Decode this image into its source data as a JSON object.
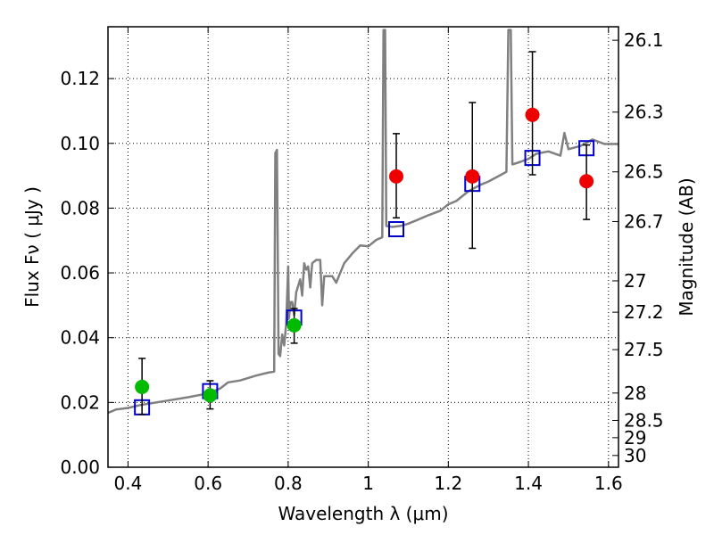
{
  "chart_data": {
    "type": "scatter",
    "xlabel": "Wavelength  λ (μm)",
    "ylabel": "Flux  Fν  ( μJy )",
    "y2label": "Magnitude (AB)",
    "xlim": [
      0.35,
      1.625
    ],
    "ylim": [
      0.0,
      0.136
    ],
    "grid": true,
    "x_ticks": [
      0.4,
      0.6,
      0.8,
      1.0,
      1.2,
      1.4,
      1.6
    ],
    "x_tick_labels": [
      "0.4",
      "0.6",
      "0.8",
      "1",
      "1.2",
      "1.4",
      "1.6"
    ],
    "y_ticks": [
      0.0,
      0.02,
      0.04,
      0.06,
      0.08,
      0.1,
      0.12
    ],
    "y_tick_labels": [
      "0.00",
      "0.02",
      "0.04",
      "0.06",
      "0.08",
      "0.10",
      "0.12"
    ],
    "y2_ticks": [
      "26.1",
      "26.3",
      "26.5",
      "26.7",
      "27",
      "27.2",
      "27.5",
      "28",
      "28.5",
      "29",
      "30"
    ],
    "series": [
      {
        "marker": "square-open",
        "color": "#0000cc",
        "points": [
          {
            "x": 0.435,
            "y": 0.0185
          },
          {
            "x": 0.605,
            "y": 0.0235
          },
          {
            "x": 0.815,
            "y": 0.0462
          },
          {
            "x": 1.07,
            "y": 0.0735
          },
          {
            "x": 1.26,
            "y": 0.0875
          },
          {
            "x": 1.41,
            "y": 0.0955
          },
          {
            "x": 1.545,
            "y": 0.0985
          }
        ]
      },
      {
        "marker": "circle",
        "color": "#00bb00",
        "points": [
          {
            "x": 0.435,
            "y": 0.0248,
            "yerr_low": 0.0085,
            "yerr_high": 0.0088
          },
          {
            "x": 0.605,
            "y": 0.0222,
            "yerr_low": 0.0042,
            "yerr_high": 0.0045
          },
          {
            "x": 0.815,
            "y": 0.0438,
            "yerr_low": 0.0055,
            "yerr_high": 0.0052
          }
        ]
      },
      {
        "marker": "circle",
        "color": "#ee0000",
        "points": [
          {
            "x": 1.07,
            "y": 0.0898,
            "yerr_low": 0.0128,
            "yerr_high": 0.0132
          },
          {
            "x": 1.26,
            "y": 0.0898,
            "yerr_low": 0.0222,
            "yerr_high": 0.0228
          },
          {
            "x": 1.41,
            "y": 0.1088,
            "yerr_low": 0.0185,
            "yerr_high": 0.0195
          },
          {
            "x": 1.545,
            "y": 0.0883,
            "yerr_low": 0.0118,
            "yerr_high": 0.0112
          }
        ]
      },
      {
        "type": "line",
        "color": "#808080",
        "points": [
          [
            0.35,
            0.0168
          ],
          [
            0.37,
            0.0178
          ],
          [
            0.4,
            0.0183
          ],
          [
            0.43,
            0.0192
          ],
          [
            0.46,
            0.0198
          ],
          [
            0.5,
            0.0206
          ],
          [
            0.55,
            0.0216
          ],
          [
            0.6,
            0.0228
          ],
          [
            0.63,
            0.0243
          ],
          [
            0.65,
            0.0262
          ],
          [
            0.68,
            0.0268
          ],
          [
            0.72,
            0.0283
          ],
          [
            0.75,
            0.0292
          ],
          [
            0.765,
            0.0295
          ],
          [
            0.768,
            0.097
          ],
          [
            0.772,
            0.098
          ],
          [
            0.776,
            0.035
          ],
          [
            0.78,
            0.0343
          ],
          [
            0.785,
            0.041
          ],
          [
            0.79,
            0.0376
          ],
          [
            0.795,
            0.044
          ],
          [
            0.8,
            0.062
          ],
          [
            0.802,
            0.046
          ],
          [
            0.806,
            0.051
          ],
          [
            0.81,
            0.051
          ],
          [
            0.815,
            0.047
          ],
          [
            0.82,
            0.054
          ],
          [
            0.83,
            0.058
          ],
          [
            0.835,
            0.053
          ],
          [
            0.84,
            0.063
          ],
          [
            0.845,
            0.061
          ],
          [
            0.85,
            0.062
          ],
          [
            0.855,
            0.0555
          ],
          [
            0.86,
            0.063
          ],
          [
            0.87,
            0.064
          ],
          [
            0.88,
            0.064
          ],
          [
            0.885,
            0.05
          ],
          [
            0.89,
            0.059
          ],
          [
            0.9,
            0.059
          ],
          [
            0.91,
            0.059
          ],
          [
            0.92,
            0.057
          ],
          [
            0.94,
            0.063
          ],
          [
            0.96,
            0.066
          ],
          [
            0.98,
            0.0685
          ],
          [
            1.0,
            0.0682
          ],
          [
            1.02,
            0.0702
          ],
          [
            1.035,
            0.071
          ],
          [
            1.038,
            0.135
          ],
          [
            1.042,
            0.135
          ],
          [
            1.045,
            0.0745
          ],
          [
            1.06,
            0.0742
          ],
          [
            1.08,
            0.0745
          ],
          [
            1.1,
            0.0752
          ],
          [
            1.12,
            0.0762
          ],
          [
            1.15,
            0.0778
          ],
          [
            1.18,
            0.0792
          ],
          [
            1.2,
            0.0812
          ],
          [
            1.22,
            0.0822
          ],
          [
            1.25,
            0.0852
          ],
          [
            1.28,
            0.0872
          ],
          [
            1.3,
            0.0882
          ],
          [
            1.33,
            0.0902
          ],
          [
            1.345,
            0.0912
          ],
          [
            1.35,
            0.135
          ],
          [
            1.356,
            0.135
          ],
          [
            1.36,
            0.0935
          ],
          [
            1.38,
            0.0943
          ],
          [
            1.4,
            0.0952
          ],
          [
            1.42,
            0.0968
          ],
          [
            1.45,
            0.0975
          ],
          [
            1.48,
            0.0962
          ],
          [
            1.49,
            0.1032
          ],
          [
            1.5,
            0.0982
          ],
          [
            1.53,
            0.0992
          ],
          [
            1.56,
            0.1012
          ],
          [
            1.59,
            0.0998
          ],
          [
            1.625,
            0.0998
          ]
        ]
      }
    ]
  }
}
